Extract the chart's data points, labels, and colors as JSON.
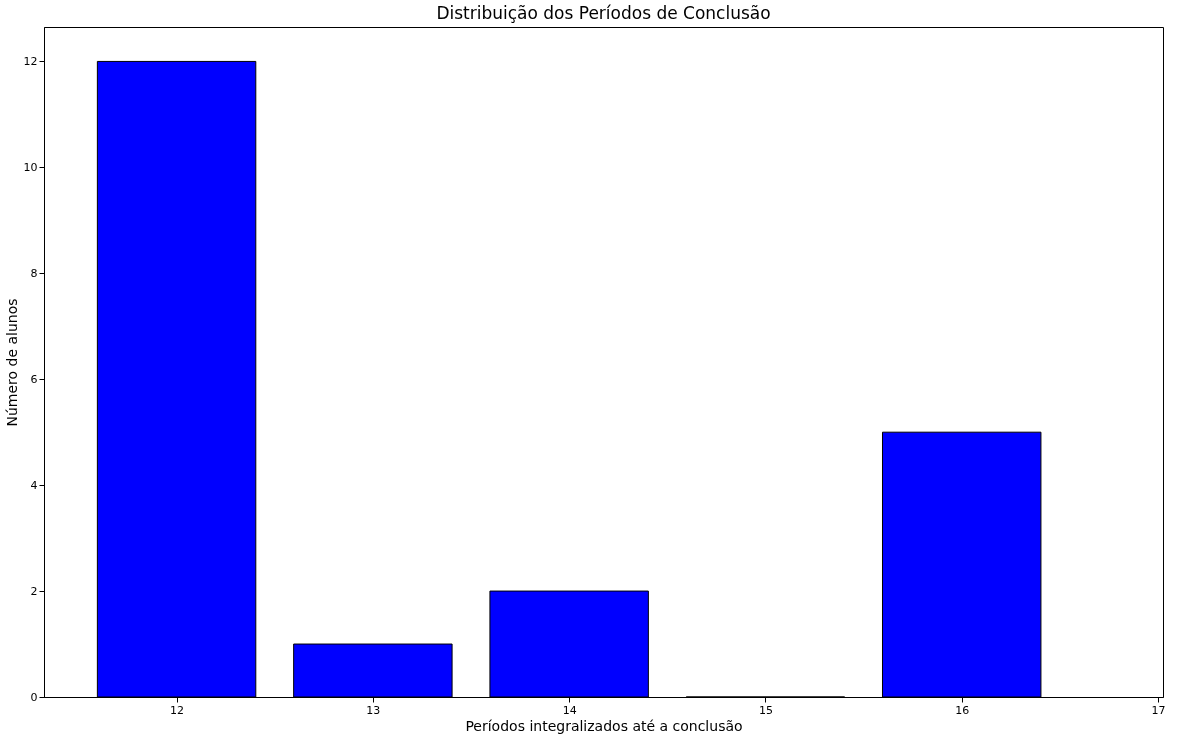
{
  "chart_data": {
    "type": "bar",
    "title": "Distribuição dos Períodos de Conclusão",
    "xlabel": "Períodos integralizados até a conclusão",
    "ylabel": "Número de alunos",
    "x": [
      12,
      13,
      14,
      15,
      16
    ],
    "values": [
      12,
      1,
      2,
      0,
      5
    ],
    "color": "#0000ff",
    "xlim": [
      11.35,
      17
    ],
    "xticks": [
      12,
      13,
      14,
      15,
      16,
      17
    ],
    "ylim": [
      0,
      12.65
    ],
    "yticks": [
      0,
      2,
      4,
      6,
      8,
      10,
      12
    ],
    "grid": false
  }
}
